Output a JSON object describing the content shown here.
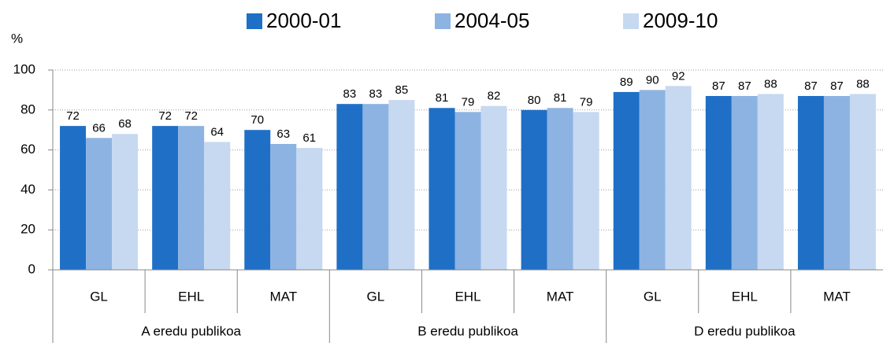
{
  "chart_data": {
    "type": "bar",
    "y_label": "%",
    "categories": [
      "GL",
      "EHL",
      "MAT",
      "GL",
      "EHL",
      "MAT",
      "GL",
      "EHL",
      "MAT"
    ],
    "category_groups": [
      "A eredu publikoa",
      "B eredu publikoa",
      "D eredu publikoa"
    ],
    "series": [
      {
        "name": "2000-01",
        "color": "#1f6fc6",
        "values": [
          72,
          72,
          70,
          83,
          81,
          80,
          89,
          87,
          87
        ]
      },
      {
        "name": "2004-05",
        "color": "#8db3e2",
        "values": [
          66,
          72,
          63,
          83,
          79,
          81,
          90,
          87,
          87
        ]
      },
      {
        "name": "2009-10",
        "color": "#c6d9f1",
        "values": [
          68,
          64,
          61,
          85,
          82,
          79,
          92,
          88,
          88
        ]
      }
    ],
    "ylim": [
      0,
      100
    ],
    "yticks": [
      0,
      20,
      40,
      60,
      80,
      100
    ],
    "grid": true,
    "legend": "top"
  }
}
